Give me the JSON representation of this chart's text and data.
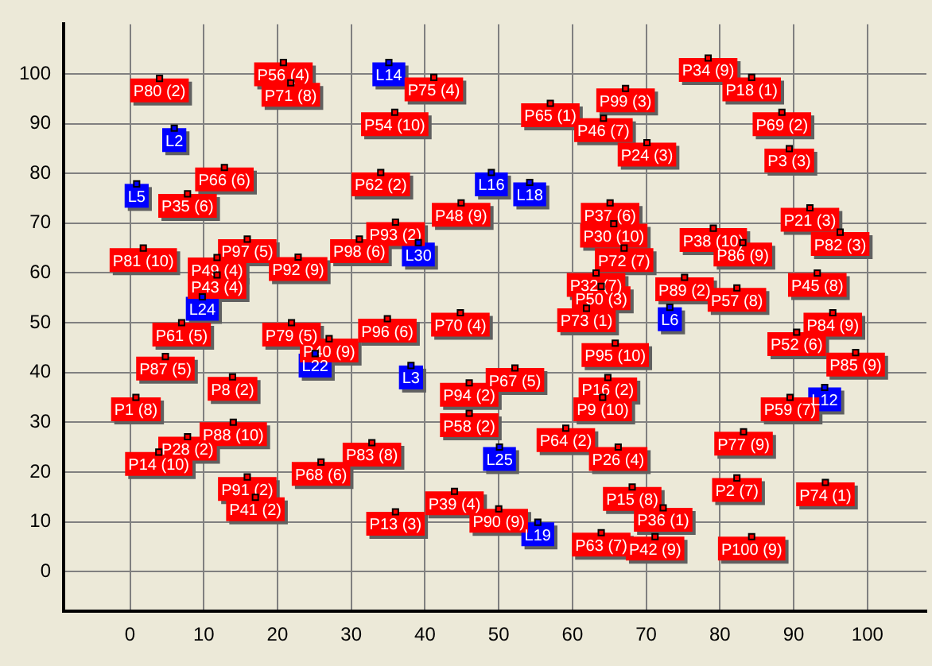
{
  "chart_data": {
    "type": "scatter",
    "marker": "square",
    "xlim": [
      -9,
      108
    ],
    "ylim": [
      -8,
      110
    ],
    "xticks": [
      0,
      10,
      20,
      30,
      40,
      50,
      60,
      70,
      80,
      90,
      100
    ],
    "yticks": [
      0,
      10,
      20,
      30,
      40,
      50,
      60,
      70,
      80,
      90,
      100
    ],
    "grid": true,
    "series": [
      {
        "color": "#0000ff",
        "x": [
          35.1,
          6,
          0.9,
          49,
          54.2,
          39.1,
          9.8,
          25.1,
          38.1,
          50.1,
          55.3,
          73.2,
          94.2
        ],
        "values": [
          102.3,
          89.1,
          77.9,
          80.2,
          78.2,
          66.1,
          55.2,
          43.8,
          41.4,
          25,
          9.9,
          53.1,
          37
        ],
        "value_labels": [
          "L14",
          "L2",
          "L5",
          "L16",
          "L18",
          "L30",
          "L24",
          "L22",
          "L3",
          "L25",
          "L19",
          "L6",
          "L12"
        ]
      },
      {
        "color": "#ff0000",
        "x": [
          4,
          20.8,
          21.8,
          41.2,
          35.9,
          57,
          64.2,
          78.4,
          84.3,
          67.2,
          88.4,
          70.1,
          89.4,
          12.8,
          7.8,
          34,
          44.9,
          36,
          31.1,
          1.8,
          15.9,
          11.8,
          11.8,
          22.8,
          65.1,
          65.6,
          79.1,
          83.1,
          92.2,
          96.3,
          67,
          82.3,
          75.2,
          93.2,
          63.2,
          63.9,
          61.9,
          7,
          27,
          21.9,
          34.9,
          44.8,
          4.8,
          13.9,
          0.8,
          52.2,
          46,
          46,
          65.8,
          98.4,
          95.3,
          90.4,
          64.8,
          64.1,
          89.5,
          3.9,
          7.8,
          14,
          25.9,
          15.9,
          17,
          32.8,
          59.1,
          83.2,
          66.2,
          44,
          36,
          50,
          71.2,
          63.9,
          68.1,
          72.3,
          84.3,
          82.3,
          94.3
        ],
        "values": [
          99.1,
          102.3,
          98.2,
          99.3,
          92.3,
          94.1,
          91.1,
          103.2,
          99.3,
          97.1,
          92.3,
          86.2,
          85,
          81.2,
          75.9,
          80.2,
          74.1,
          70.2,
          66.8,
          65,
          66.8,
          59.6,
          63.1,
          63.2,
          74.1,
          69.9,
          69,
          66.1,
          73.1,
          68.2,
          65,
          57,
          59.1,
          60,
          60,
          57.3,
          52.9,
          50,
          46.8,
          50,
          50.8,
          52,
          43.2,
          39.1,
          35,
          40.9,
          37.9,
          31.8,
          45.9,
          44,
          52,
          48.1,
          39,
          35,
          35,
          24,
          27.1,
          30,
          22,
          19,
          14.9,
          25.9,
          28.8,
          28.1,
          25,
          16.1,
          12,
          12.6,
          7,
          7.8,
          17,
          12.8,
          7,
          18.8,
          17.9
        ],
        "value_labels": [
          "P80 (2)",
          "P56 (4)",
          "P71 (8)",
          "P75 (4)",
          "P54 (10)",
          "P65 (1)",
          "P46 (7)",
          "P34 (9)",
          "P18 (1)",
          "P99 (3)",
          "P69 (2)",
          "P24 (3)",
          "P3 (3)",
          "P66 (6)",
          "P35 (6)",
          "P62 (2)",
          "P48 (9)",
          "P93 (2)",
          "P98 (6)",
          "P81 (10)",
          "P97 (5)",
          "P43 (4)",
          "P49 (4)",
          "P92 (9)",
          "P37 (6)",
          "P30 (10)",
          "P38 (10)",
          "P86 (9)",
          "P21 (3)",
          "P82 (3)",
          "P72 (7)",
          "P57 (8)",
          "P89 (2)",
          "P45 (8)",
          "P32 (7)",
          "P50 (3)",
          "P73 (1)",
          "P61 (5)",
          "P40 (9)",
          "P79 (5)",
          "P96 (6)",
          "P70 (4)",
          "P87 (5)",
          "P8 (2)",
          "P1 (8)",
          "P67 (5)",
          "P94 (2)",
          "P58 (2)",
          "P95 (10)",
          "P85 (9)",
          "P84 (9)",
          "P52 (6)",
          "P16 (2)",
          "P9 (10)",
          "P59 (7)",
          "P14 (10)",
          "P28 (2)",
          "P88 (10)",
          "P68 (6)",
          "P91 (2)",
          "P41 (2)",
          "P83 (8)",
          "P64 (2)",
          "P77 (9)",
          "P26 (4)",
          "P39 (4)",
          "P13 (3)",
          "P90 (9)",
          "P42 (9)",
          "P63 (7)",
          "P15 (8)",
          "P36 (1)",
          "P100 (9)",
          "P2 (7)",
          "P74 (1)"
        ]
      }
    ]
  }
}
